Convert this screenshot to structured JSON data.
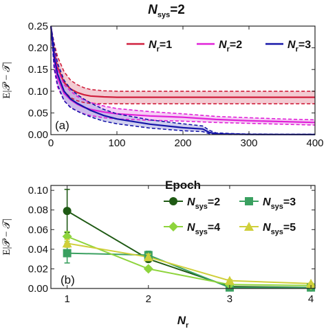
{
  "chart_data": [
    {
      "id": "a",
      "type": "line",
      "title_main": "N",
      "title_sub": "sys",
      "title_rest": "=2",
      "panel_label": "(a)",
      "xlabel": "Epoch",
      "ylabel": "E|𝒫 − 𝒯|",
      "xlim": [
        0,
        400
      ],
      "ylim": [
        0,
        0.25
      ],
      "xticks": [
        "0",
        "100",
        "200",
        "300",
        "400"
      ],
      "xtick_values": [
        0,
        100,
        200,
        300,
        400
      ],
      "yticks": [
        "0.00",
        "0.05",
        "0.10",
        "0.15",
        "0.20",
        "0.25"
      ],
      "ytick_values": [
        0,
        0.05,
        0.1,
        0.15,
        0.2,
        0.25
      ],
      "legend_position": "top",
      "series": [
        {
          "name": "N_r=1",
          "label_main": "N",
          "label_sub": "r",
          "label_rest": "=1",
          "color": "#d01f3c",
          "band_color": "#e9a0ad",
          "x": [
            0,
            5,
            10,
            20,
            30,
            40,
            50,
            60,
            80,
            100,
            150,
            200,
            250,
            300,
            350,
            400
          ],
          "values": [
            0.25,
            0.19,
            0.155,
            0.12,
            0.105,
            0.097,
            0.092,
            0.089,
            0.087,
            0.086,
            0.086,
            0.086,
            0.086,
            0.086,
            0.086,
            0.086
          ],
          "upper": [
            0.25,
            0.21,
            0.18,
            0.145,
            0.125,
            0.115,
            0.108,
            0.104,
            0.101,
            0.1,
            0.1,
            0.1,
            0.1,
            0.1,
            0.1,
            0.1
          ],
          "lower": [
            0.25,
            0.17,
            0.13,
            0.1,
            0.085,
            0.078,
            0.074,
            0.072,
            0.071,
            0.071,
            0.071,
            0.071,
            0.071,
            0.071,
            0.071,
            0.071
          ]
        },
        {
          "name": "N_r=2",
          "label_main": "N",
          "label_sub": "r",
          "label_rest": "=2",
          "color": "#e020d8",
          "band_color": "#efa6ec",
          "x": [
            0,
            5,
            10,
            20,
            30,
            40,
            50,
            60,
            80,
            100,
            150,
            200,
            250,
            300,
            350,
            400
          ],
          "values": [
            0.25,
            0.17,
            0.13,
            0.095,
            0.08,
            0.07,
            0.063,
            0.058,
            0.052,
            0.048,
            0.043,
            0.04,
            0.035,
            0.032,
            0.03,
            0.028
          ],
          "upper": [
            0.25,
            0.19,
            0.15,
            0.115,
            0.1,
            0.088,
            0.08,
            0.074,
            0.066,
            0.06,
            0.053,
            0.048,
            0.042,
            0.039,
            0.036,
            0.034
          ],
          "lower": [
            0.25,
            0.15,
            0.11,
            0.078,
            0.063,
            0.054,
            0.048,
            0.044,
            0.039,
            0.036,
            0.033,
            0.031,
            0.028,
            0.026,
            0.024,
            0.022
          ]
        },
        {
          "name": "N_r=3",
          "label_main": "N",
          "label_sub": "r",
          "label_rest": "=3",
          "color": "#1414a8",
          "band_color": "#a9a9e0",
          "x": [
            0,
            5,
            10,
            20,
            30,
            40,
            50,
            60,
            80,
            100,
            150,
            200,
            230,
            240,
            250,
            280,
            300,
            350,
            400
          ],
          "values": [
            0.25,
            0.18,
            0.14,
            0.1,
            0.082,
            0.072,
            0.064,
            0.056,
            0.044,
            0.036,
            0.024,
            0.016,
            0.013,
            0.005,
            0.002,
            0.001,
            0.0005,
            0.0003,
            0.0002
          ],
          "upper": [
            0.25,
            0.205,
            0.165,
            0.125,
            0.105,
            0.092,
            0.082,
            0.073,
            0.058,
            0.048,
            0.034,
            0.025,
            0.02,
            0.01,
            0.004,
            0.002,
            0.0015,
            0.001,
            0.001
          ],
          "lower": [
            0.25,
            0.155,
            0.115,
            0.078,
            0.062,
            0.054,
            0.047,
            0.041,
            0.031,
            0.025,
            0.015,
            0.009,
            0.007,
            0.002,
            0.0005,
            0.0003,
            0.0002,
            0.0001,
            0.0001
          ]
        }
      ]
    },
    {
      "id": "b",
      "type": "line",
      "panel_label": "(b)",
      "xlabel_main": "N",
      "xlabel_sub": "r",
      "ylabel": "E|𝒫 − 𝒯|",
      "xlim": [
        0.8,
        4.05
      ],
      "ylim": [
        0,
        0.105
      ],
      "xticks": [
        "1",
        "2",
        "3",
        "4"
      ],
      "xtick_values": [
        1,
        2,
        3,
        4
      ],
      "yticks": [
        "0.00",
        "0.02",
        "0.04",
        "0.06",
        "0.08",
        "0.10"
      ],
      "ytick_values": [
        0,
        0.02,
        0.04,
        0.06,
        0.08,
        0.1
      ],
      "legend_position": "top-right",
      "categories": [
        1,
        2,
        3,
        4
      ],
      "series": [
        {
          "name": "N_sys=2",
          "label_main": "N",
          "label_sub": "sys",
          "label_rest": "=2",
          "color": "#1f5a14",
          "marker": "circle",
          "values": [
            0.079,
            0.03,
            0.002,
            0.001
          ],
          "err": [
            0.022,
            0.003,
            0.001,
            0.0005
          ]
        },
        {
          "name": "N_sys=3",
          "label_main": "N",
          "label_sub": "sys",
          "label_rest": "=3",
          "color": "#3aa060",
          "marker": "square",
          "values": [
            0.036,
            0.034,
            0.001,
            0.001
          ],
          "err": [
            0.01,
            0.004,
            0.001,
            0.0005
          ]
        },
        {
          "name": "N_sys=4",
          "label_main": "N",
          "label_sub": "sys",
          "label_rest": "=4",
          "color": "#8ed43c",
          "marker": "diamond",
          "values": [
            0.053,
            0.02,
            0.004,
            0.003
          ],
          "err": [
            0.005,
            0.002,
            0.001,
            0.0005
          ]
        },
        {
          "name": "N_sys=5",
          "label_main": "N",
          "label_sub": "sys",
          "label_rest": "=5",
          "color": "#cfcf3a",
          "marker": "triangle",
          "values": [
            0.046,
            0.032,
            0.008,
            0.005
          ],
          "err": [
            0.004,
            0.003,
            0.001,
            0.0005
          ]
        }
      ]
    }
  ]
}
